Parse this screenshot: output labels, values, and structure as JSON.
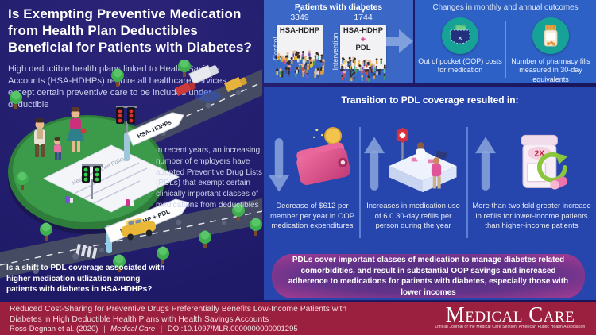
{
  "left": {
    "title": "Is Exempting Preventive Medication from Health Plan Deductibles Beneficial for Patients with Diabetes?",
    "intro": "High deductible health plans linked to Health Savings Accounts (HSA-HDHPs) require all healthcare services except certain preventive care to be included under the deductible",
    "pdl_note": "In recent years, an increasing number of employers have adopted Preventive Drug Lists (PDLs) that exempt certain clinically important classes of medications from deductibles",
    "question": "Is a shift to PDL coverage associated with higher medication utlization among patients with diabetes in HSA-HDHPs?",
    "sign_hdhp": "HSA- HDHPs",
    "sign_pdl": "HSA-HDHP + PDL",
    "policy_title": "Health Insurance Policy"
  },
  "cohort": {
    "header": "Patients with diabetes",
    "control": {
      "label": "Control",
      "count": "3349",
      "plan": "HSA-HDHP"
    },
    "intervention": {
      "label": "Intervention",
      "count": "1744",
      "plan": "HSA-HDHP",
      "plus": "+",
      "plan_extra": "PDL"
    }
  },
  "outcomes": {
    "header": "Changes in monthly and annual outcomes",
    "items": [
      {
        "label": "Out of pocket (OOP) costs for medication",
        "icon": "pocket-money-icon"
      },
      {
        "label": "Number of pharmacy fills measured in 30-day equivalents",
        "icon": "pill-bottle-icon"
      }
    ]
  },
  "results": {
    "header": "Transition to PDL coverage resulted in:",
    "items": [
      {
        "direction": "down",
        "icon": "wallet-icon",
        "text": "Decrease of $612 per member per year in OOP medication expenditures"
      },
      {
        "direction": "up",
        "icon": "pharmacy-icon",
        "text": "Increases in medication use of 6.0 30-day refills per person during the year"
      },
      {
        "direction": "up",
        "icon": "refill-bottle-icon",
        "badge": "2X",
        "text": "More than two fold greater increase in refills for lower-income patients than higher-income patients"
      }
    ],
    "summary": "PDLs cover important classes of medication to manage diabetes related comorbidities, and result in substantial OOP savings and increased adherence to medications for patients with diabetes, especially those with lower incomes"
  },
  "footer": {
    "citation": "Reduced Cost-Sharing for Preventive Drugs Preferentially Benefits Low-Income Patients with Diabetes in High Deductible Health Plans with Health Savings Accounts",
    "authors": "Ross-Degnan et al. (2020)",
    "journal_italic": "Medical Care",
    "doi": "DOI:10.1097/MLR.0000000000001295",
    "separator": "|",
    "logo": "Medical Care",
    "logo_sub": "Official Journal of the Medical Care Section, American Public Health Association"
  },
  "colors": {
    "accent_teal": "#16a296",
    "accent_magenta": "#d6318e",
    "panel_blue": "#3b68c6",
    "panel_royal": "#2646ad",
    "footer_maroon": "#9b1f3f"
  }
}
